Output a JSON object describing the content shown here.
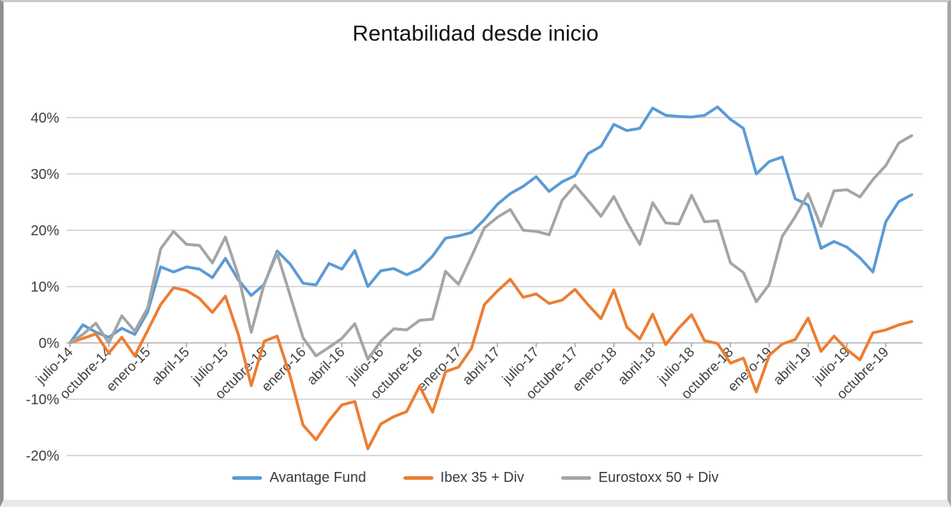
{
  "title": "Rentabilidad desde inicio",
  "colors": {
    "avantage_blue": "#5B9BD5",
    "ibex_orange": "#ED7D31",
    "eurostoxx_gray": "#A5A5A5",
    "gridline": "#d9d9d9",
    "axis_line": "#c0c0c0",
    "tick_mark": "#9e9e9e",
    "axis_text": "#3f3f3f"
  },
  "chart_data": {
    "type": "line",
    "title": "Rentabilidad desde inicio",
    "xlabel": "",
    "ylabel": "",
    "ylim": [
      -20,
      45
    ],
    "grid": "horizontal",
    "legend_position": "bottom",
    "y_ticks": {
      "labels": [
        "40%",
        "30%",
        "20%",
        "10%",
        "0%",
        "-10%",
        "-20%"
      ],
      "values": [
        40,
        30,
        20,
        10,
        0,
        -10,
        -20
      ]
    },
    "x_tick_step": 3,
    "x_tick_labels_visible": [
      "julio-14",
      "octubre-14",
      "enero-15",
      "abril-15",
      "julio-15",
      "octubre-15",
      "enero-16",
      "abril-16",
      "julio-16",
      "octubre-16",
      "enero-17",
      "abril-17",
      "julio-17",
      "octubre-17",
      "enero-18",
      "abril-18",
      "julio-18",
      "octubre-18",
      "enero-19",
      "abril-19",
      "julio-19",
      "octubre-19"
    ],
    "categories": [
      "julio-14",
      "agosto-14",
      "septiembre-14",
      "octubre-14",
      "noviembre-14",
      "diciembre-14",
      "enero-15",
      "febrero-15",
      "marzo-15",
      "abril-15",
      "mayo-15",
      "junio-15",
      "julio-15",
      "agosto-15",
      "septiembre-15",
      "octubre-15",
      "noviembre-15",
      "diciembre-15",
      "enero-16",
      "febrero-16",
      "marzo-16",
      "abril-16",
      "mayo-16",
      "junio-16",
      "julio-16",
      "agosto-16",
      "septiembre-16",
      "octubre-16",
      "noviembre-16",
      "diciembre-16",
      "enero-17",
      "febrero-17",
      "marzo-17",
      "abril-17",
      "mayo-17",
      "junio-17",
      "julio-17",
      "agosto-17",
      "septiembre-17",
      "octubre-17",
      "noviembre-17",
      "diciembre-17",
      "enero-18",
      "febrero-18",
      "marzo-18",
      "abril-18",
      "mayo-18",
      "junio-18",
      "julio-18",
      "agosto-18",
      "septiembre-18",
      "octubre-18",
      "noviembre-18",
      "diciembre-18",
      "enero-19",
      "febrero-19",
      "marzo-19",
      "abril-19",
      "mayo-19",
      "junio-19",
      "julio-19",
      "agosto-19",
      "septiembre-19",
      "octubre-19",
      "noviembre-19",
      "diciembre-19"
    ],
    "series": [
      {
        "name": "Avantage Fund",
        "color": "#5B9BD5",
        "values": [
          0,
          3.2,
          1.9,
          1.0,
          2.6,
          1.5,
          5.5,
          13.5,
          12.6,
          13.5,
          13.1,
          11.6,
          15.0,
          11.2,
          8.4,
          10.4,
          16.3,
          14.0,
          10.6,
          10.3,
          14.1,
          13.1,
          16.4,
          10.0,
          12.8,
          13.2,
          12.1,
          13.1,
          15.4,
          18.6,
          19.0,
          19.6,
          21.9,
          24.6,
          26.5,
          27.8,
          29.5,
          26.9,
          28.6,
          29.7,
          33.6,
          34.9,
          38.8,
          37.7,
          38.1,
          41.7,
          40.4,
          40.2,
          40.1,
          40.4,
          41.9,
          39.7,
          38.1,
          30.0,
          32.2,
          33.0,
          25.6,
          24.5,
          16.8,
          18.0,
          17.0,
          15.1,
          12.6,
          21.5,
          25.1,
          26.3
        ]
      },
      {
        "name": "Ibex 35 + Div",
        "color": "#ED7D31",
        "values": [
          0,
          0.8,
          1.6,
          -1.8,
          1.0,
          -2.3,
          2.2,
          6.8,
          9.8,
          9.3,
          7.9,
          5.4,
          8.3,
          1.5,
          -7.6,
          0.3,
          1.2,
          -5.9,
          -14.6,
          -17.2,
          -13.8,
          -11.0,
          -10.4,
          -18.8,
          -14.4,
          -13.1,
          -12.2,
          -7.7,
          -12.3,
          -5.1,
          -4.3,
          -1.0,
          6.8,
          9.2,
          11.3,
          8.1,
          8.7,
          7.0,
          7.6,
          9.5,
          6.8,
          4.3,
          9.4,
          2.8,
          0.7,
          5.1,
          -0.3,
          2.6,
          5.0,
          0.4,
          -0.1,
          -3.6,
          -2.7,
          -8.7,
          -2.2,
          -0.2,
          0.6,
          4.4,
          -1.5,
          1.2,
          -1.2,
          -3.0,
          1.8,
          2.3,
          3.2,
          3.8
        ]
      },
      {
        "name": "Eurostoxx 50 + Div",
        "color": "#A5A5A5",
        "values": [
          0,
          1.5,
          3.5,
          0.0,
          4.8,
          2.1,
          6.2,
          16.7,
          19.8,
          17.5,
          17.3,
          14.2,
          18.8,
          12.0,
          1.9,
          10.5,
          15.9,
          8.4,
          0.9,
          -2.3,
          -0.8,
          0.8,
          3.4,
          -2.9,
          0.3,
          2.5,
          2.3,
          4.0,
          4.2,
          12.7,
          10.4,
          15.3,
          20.4,
          22.3,
          23.7,
          20.0,
          19.8,
          19.2,
          25.3,
          28.0,
          25.3,
          22.5,
          26.0,
          21.5,
          17.5,
          24.9,
          21.3,
          21.1,
          26.2,
          21.5,
          21.7,
          14.2,
          12.5,
          7.3,
          10.4,
          18.9,
          22.4,
          26.5,
          20.7,
          27.0,
          27.2,
          25.9,
          29.0,
          31.5,
          35.5,
          36.8
        ]
      }
    ]
  },
  "legend": [
    {
      "label": "Avantage Fund"
    },
    {
      "label": "Ibex 35 + Div"
    },
    {
      "label": "Eurostoxx 50 + Div"
    }
  ]
}
